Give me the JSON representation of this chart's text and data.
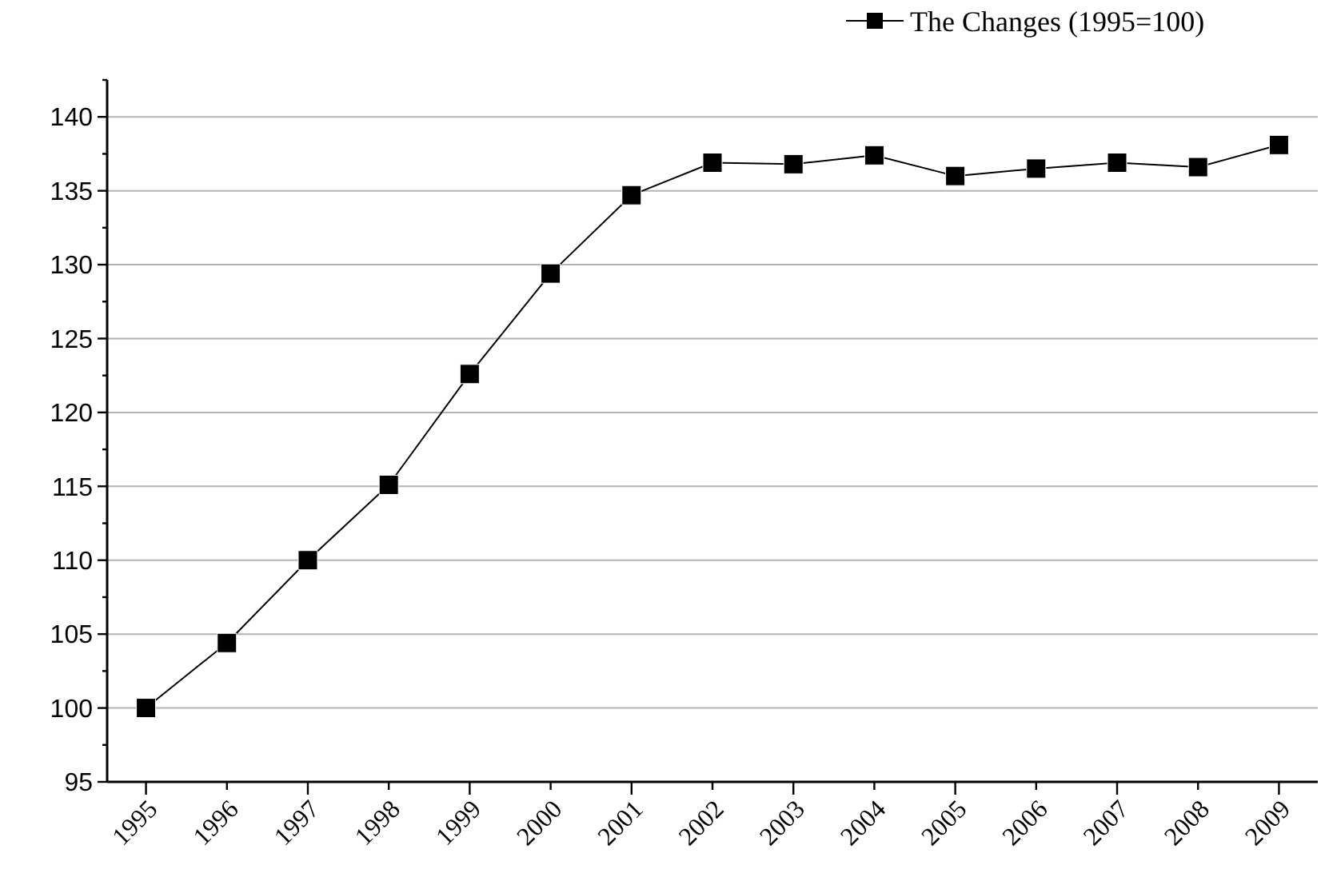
{
  "chart_data": {
    "type": "line",
    "categories": [
      "1995",
      "1996",
      "1997",
      "1998",
      "1999",
      "2000",
      "2001",
      "2002",
      "2003",
      "2004",
      "2005",
      "2006",
      "2007",
      "2008",
      "2009"
    ],
    "series": [
      {
        "name": "The Changes (1995=100)",
        "color": "#000000",
        "values": [
          100,
          104.4,
          110,
          115.1,
          122.6,
          129.4,
          134.7,
          136.9,
          136.8,
          137.4,
          136.0,
          136.5,
          136.9,
          136.6,
          138.1
        ]
      }
    ],
    "ylim": [
      95,
      142.5
    ],
    "yticks": [
      95,
      {
        "value": 97.5,
        "label": null
      },
      100,
      {
        "value": 102.5,
        "label": null
      },
      105,
      {
        "value": 107.5,
        "label": null
      },
      110,
      {
        "value": 112.5,
        "label": null
      },
      115,
      {
        "value": 117.5,
        "label": null
      },
      120,
      {
        "value": 122.5,
        "label": null
      },
      125,
      {
        "value": 127.5,
        "label": null
      },
      130,
      {
        "value": 132.5,
        "label": null
      },
      135,
      {
        "value": 137.5,
        "label": null
      },
      140,
      {
        "value": 142.5,
        "label": null
      }
    ],
    "grid": "y",
    "legend": "top right",
    "marker": "square",
    "line_style": "solid"
  }
}
